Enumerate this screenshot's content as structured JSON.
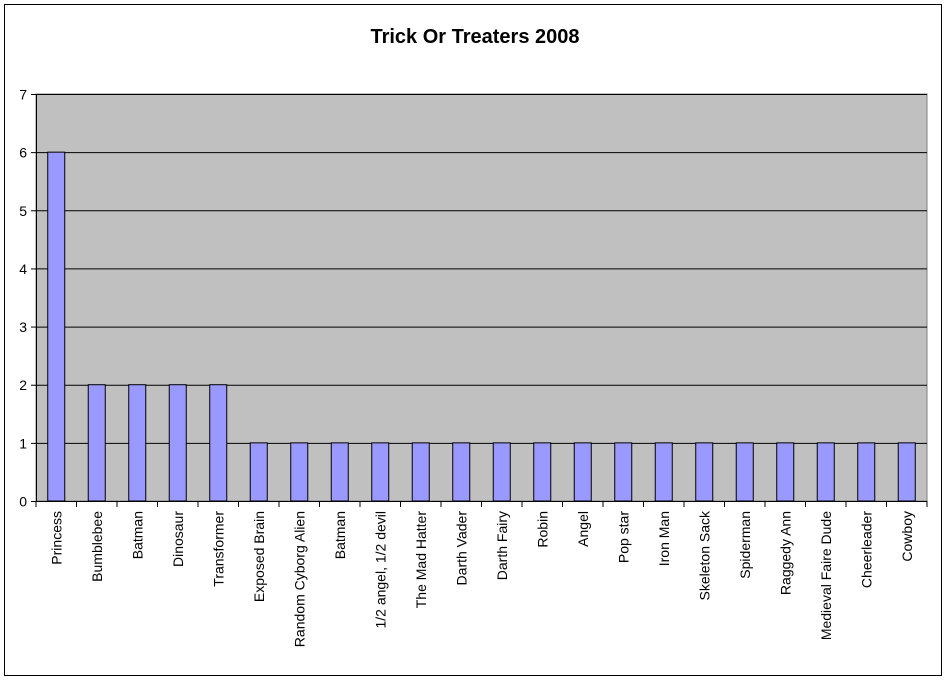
{
  "chart_data": {
    "type": "bar",
    "title": "Trick Or Treaters 2008",
    "xlabel": "",
    "ylabel": "",
    "categories": [
      "Princess",
      "Bumblebee",
      "Batman",
      "Dinosaur",
      "Transformer",
      "Exposed Brain",
      "Random Cyborg Alien",
      "Batman",
      "1/2 angel, 1/2 devil",
      "The Mad Hatter",
      "Darth Vader",
      "Darth Fairy",
      "Robin",
      "Angel",
      "Pop star",
      "Iron Man",
      "Skeleton Sack",
      "Spiderman",
      "Raggedy Ann",
      "Medieval Faire Dude",
      "Cheerleader",
      "Cowboy"
    ],
    "values": [
      6,
      2,
      2,
      2,
      2,
      1,
      1,
      1,
      1,
      1,
      1,
      1,
      1,
      1,
      1,
      1,
      1,
      1,
      1,
      1,
      1,
      1
    ],
    "ylim": [
      0,
      7
    ],
    "yticks": [
      0,
      1,
      2,
      3,
      4,
      5,
      6,
      7
    ],
    "grid": true,
    "legend": "none",
    "colors": {
      "bar": "#9999ff",
      "bar_border": "#000000",
      "plot_background": "#c0c0c0",
      "gridline": "#000000"
    }
  }
}
